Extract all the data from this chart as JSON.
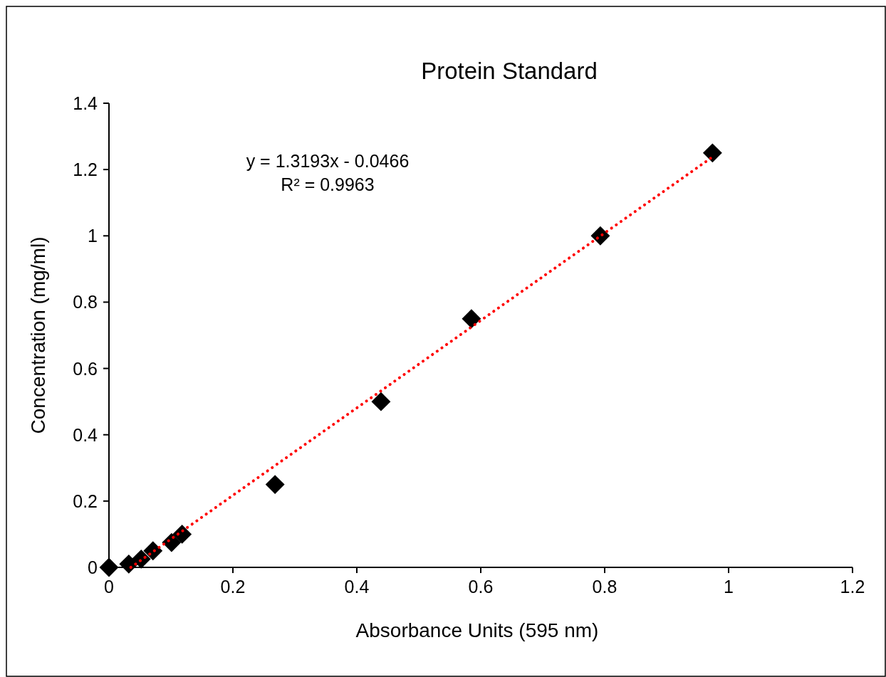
{
  "chart_data": {
    "type": "scatter",
    "title": "Protein Standard",
    "xlabel": "Absorbance Units (595 nm)",
    "ylabel": "Concentration (mg/ml)",
    "xlim": [
      0,
      1.2
    ],
    "xticks": [
      0,
      0.2,
      0.4,
      0.6,
      0.8,
      1,
      1.2
    ],
    "ylim": [
      0,
      1.4
    ],
    "yticks": [
      0,
      0.2,
      0.4,
      0.6,
      0.8,
      1,
      1.2,
      1.4
    ],
    "grid": false,
    "marker": "diamond",
    "annotations": [
      "y = 1.3193x - 0.0466",
      "R² = 0.9963"
    ],
    "series": [
      {
        "color": "#000000",
        "x": [
          0,
          0.032,
          0.052,
          0.071,
          0.101,
          0.118,
          0.268,
          0.439,
          0.585,
          0.793,
          0.974
        ],
        "values": [
          0,
          0.01,
          0.025,
          0.05,
          0.075,
          0.1,
          0.25,
          0.5,
          0.75,
          1,
          1.25
        ]
      },
      {
        "type": "line",
        "color": "#ff0000",
        "line_style": "dotted",
        "marker": "none",
        "x": [
          0.0353,
          0.974
        ],
        "values": [
          0,
          1.238
        ]
      }
    ]
  }
}
